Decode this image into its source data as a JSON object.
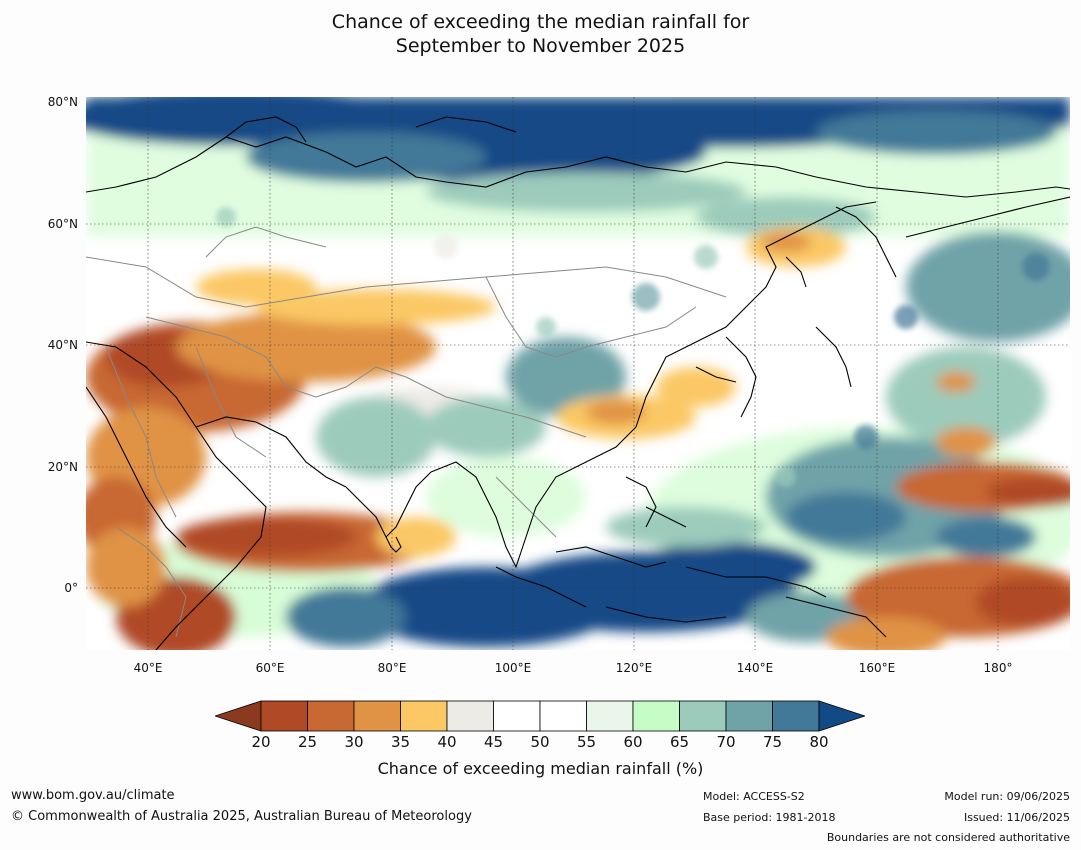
{
  "title_line1": "Chance of exceeding the median rainfall for",
  "title_line2": "September to November 2025",
  "lat_labels": [
    "80°N",
    "60°N",
    "40°N",
    "20°N",
    "0°"
  ],
  "lon_labels": [
    "40°E",
    "60°E",
    "80°E",
    "100°E",
    "120°E",
    "140°E",
    "160°E",
    "180°"
  ],
  "colorbar": {
    "ticks": [
      "20",
      "25",
      "30",
      "35",
      "40",
      "45",
      "50",
      "55",
      "60",
      "65",
      "70",
      "75",
      "80"
    ],
    "colors": [
      "#8b3a1f",
      "#b04a26",
      "#c86833",
      "#e09344",
      "#fbc865",
      "#edebe6",
      "#ffffff",
      "#ffffff",
      "#e9f6e9",
      "#c6fcc6",
      "#9ccbbb",
      "#6fa3a8",
      "#427898",
      "#124a86"
    ],
    "title": "Chance of exceeding median rainfall (%)"
  },
  "footer": {
    "website": "www.bom.gov.au/climate",
    "copyright": "© Commonwealth of Australia 2025, Australian Bureau of Meteorology",
    "model": "Model: ACCESS-S2",
    "base_period": "Base period: 1981-2018",
    "model_run": "Model run: 09/06/2025",
    "issued": "Issued: 11/06/2025",
    "disclaimer": "Boundaries are not considered authoritative"
  }
}
